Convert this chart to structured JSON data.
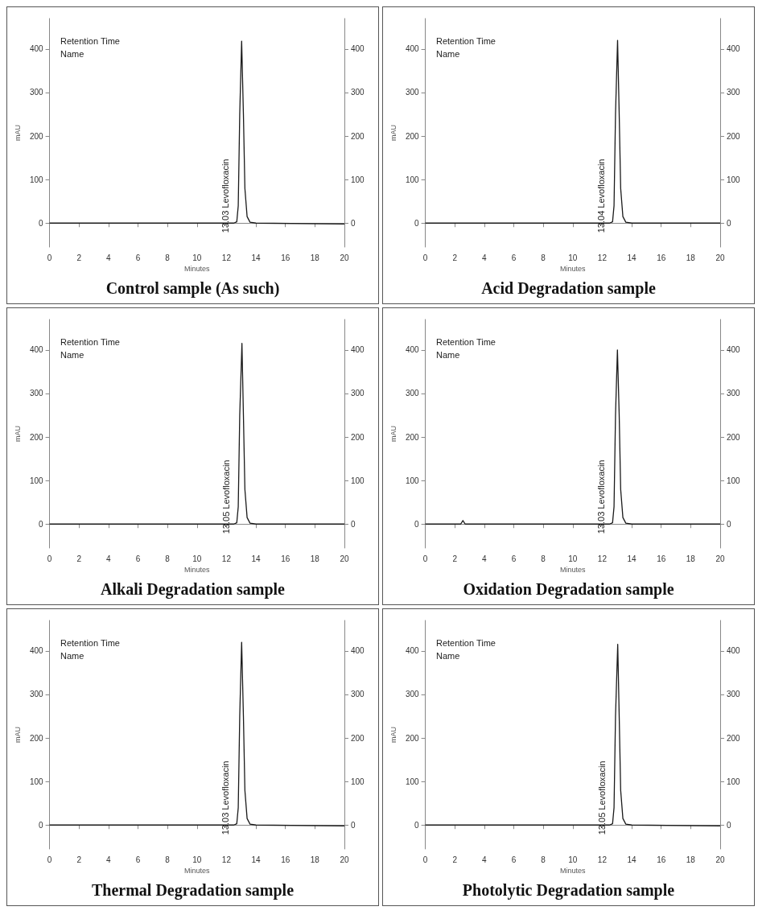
{
  "chart_data": [
    {
      "type": "line",
      "title": "Control sample (As such)",
      "xlabel": "Minutes",
      "ylabel": "mAU",
      "annotations": [
        "Retention Time",
        "Name",
        "13.03 Levofloxacin"
      ],
      "series": [
        {
          "color": "#1a1a1a",
          "x": [
            0,
            12.5,
            12.7,
            12.8,
            12.9,
            13.03,
            13.15,
            13.25,
            13.4,
            13.6,
            14,
            20
          ],
          "values": [
            0,
            0,
            3,
            40,
            250,
            418,
            250,
            80,
            15,
            2,
            0,
            -2
          ]
        }
      ],
      "xlim": [
        0,
        20
      ],
      "xticks": [
        0,
        2,
        4,
        6,
        8,
        10,
        12,
        14,
        16,
        18,
        20
      ],
      "ylim": [
        -55,
        470
      ],
      "yticks": [
        0,
        100,
        200,
        300,
        400
      ],
      "y2lim": [
        -55,
        470
      ],
      "y2ticks": [
        0,
        100,
        200,
        300,
        400
      ],
      "marker": "none"
    },
    {
      "type": "line",
      "title": "Acid Degradation sample",
      "xlabel": "Minutes",
      "ylabel": "mAU",
      "annotations": [
        "Retention Time",
        "Name",
        "13.04 Levofloxacin"
      ],
      "series": [
        {
          "color": "#1a1a1a",
          "x": [
            0,
            12.5,
            12.7,
            12.8,
            12.9,
            13.04,
            13.15,
            13.25,
            13.4,
            13.6,
            14,
            20
          ],
          "values": [
            0,
            0,
            3,
            40,
            250,
            420,
            250,
            80,
            15,
            2,
            0,
            0
          ]
        }
      ],
      "xlim": [
        0,
        20
      ],
      "xticks": [
        0,
        2,
        4,
        6,
        8,
        10,
        12,
        14,
        16,
        18,
        20
      ],
      "ylim": [
        -55,
        470
      ],
      "yticks": [
        0,
        100,
        200,
        300,
        400
      ],
      "y2lim": [
        -55,
        470
      ],
      "y2ticks": [
        0,
        100,
        200,
        300,
        400
      ],
      "marker": "none"
    },
    {
      "type": "line",
      "title": "Alkali Degradation sample",
      "xlabel": "Minutes",
      "ylabel": "mAU",
      "annotations": [
        "Retention Time",
        "Name",
        "13.05 Levofloxacin"
      ],
      "series": [
        {
          "color": "#1a1a1a",
          "x": [
            0,
            12.5,
            12.7,
            12.8,
            12.9,
            13.05,
            13.15,
            13.25,
            13.4,
            13.6,
            14,
            20
          ],
          "values": [
            0,
            0,
            3,
            40,
            250,
            415,
            250,
            80,
            15,
            2,
            0,
            0
          ]
        }
      ],
      "xlim": [
        0,
        20
      ],
      "xticks": [
        0,
        2,
        4,
        6,
        8,
        10,
        12,
        14,
        16,
        18,
        20
      ],
      "ylim": [
        -55,
        470
      ],
      "yticks": [
        0,
        100,
        200,
        300,
        400
      ],
      "y2lim": [
        -55,
        470
      ],
      "y2ticks": [
        0,
        100,
        200,
        300,
        400
      ],
      "marker": "none"
    },
    {
      "type": "line",
      "title": "Oxidation Degradation sample",
      "xlabel": "Minutes",
      "ylabel": "mAU",
      "annotations": [
        "Retention Time",
        "Name",
        "13.03 Levofloxacin"
      ],
      "series": [
        {
          "color": "#1a1a1a",
          "x": [
            0,
            2.4,
            2.55,
            2.7,
            12.5,
            12.7,
            12.8,
            12.9,
            13.03,
            13.15,
            13.25,
            13.4,
            13.6,
            14,
            20
          ],
          "values": [
            0,
            0,
            8,
            0,
            0,
            3,
            40,
            250,
            400,
            250,
            80,
            15,
            2,
            0,
            0
          ]
        }
      ],
      "xlim": [
        0,
        20
      ],
      "xticks": [
        0,
        2,
        4,
        6,
        8,
        10,
        12,
        14,
        16,
        18,
        20
      ],
      "ylim": [
        -55,
        470
      ],
      "yticks": [
        0,
        100,
        200,
        300,
        400
      ],
      "y2lim": [
        -55,
        470
      ],
      "y2ticks": [
        0,
        100,
        200,
        300,
        400
      ],
      "marker": "none"
    },
    {
      "type": "line",
      "title": "Thermal Degradation sample",
      "xlabel": "Minutes",
      "ylabel": "mAU",
      "annotations": [
        "Retention Time",
        "Name",
        "13.03 Levofloxacin"
      ],
      "series": [
        {
          "color": "#1a1a1a",
          "x": [
            0,
            12.5,
            12.7,
            12.8,
            12.9,
            13.03,
            13.15,
            13.25,
            13.4,
            13.6,
            14,
            20
          ],
          "values": [
            0,
            0,
            3,
            40,
            250,
            420,
            250,
            80,
            15,
            2,
            0,
            -2
          ]
        }
      ],
      "xlim": [
        0,
        20
      ],
      "xticks": [
        0,
        2,
        4,
        6,
        8,
        10,
        12,
        14,
        16,
        18,
        20
      ],
      "ylim": [
        -55,
        470
      ],
      "yticks": [
        0,
        100,
        200,
        300,
        400
      ],
      "y2lim": [
        -55,
        470
      ],
      "y2ticks": [
        0,
        100,
        200,
        300,
        400
      ],
      "marker": "none"
    },
    {
      "type": "line",
      "title": "Photolytic Degradation sample",
      "xlabel": "Minutes",
      "ylabel": "mAU",
      "annotations": [
        "Retention Time",
        "Name",
        "13.05 Levofloxacin"
      ],
      "series": [
        {
          "color": "#1a1a1a",
          "x": [
            0,
            12.5,
            12.7,
            12.8,
            12.9,
            13.05,
            13.15,
            13.25,
            13.4,
            13.6,
            14,
            20
          ],
          "values": [
            0,
            0,
            3,
            40,
            250,
            415,
            250,
            80,
            15,
            2,
            0,
            -2
          ]
        }
      ],
      "xlim": [
        0,
        20
      ],
      "xticks": [
        0,
        2,
        4,
        6,
        8,
        10,
        12,
        14,
        16,
        18,
        20
      ],
      "ylim": [
        -55,
        470
      ],
      "yticks": [
        0,
        100,
        200,
        300,
        400
      ],
      "y2lim": [
        -55,
        470
      ],
      "y2ticks": [
        0,
        100,
        200,
        300,
        400
      ],
      "marker": "none"
    }
  ]
}
